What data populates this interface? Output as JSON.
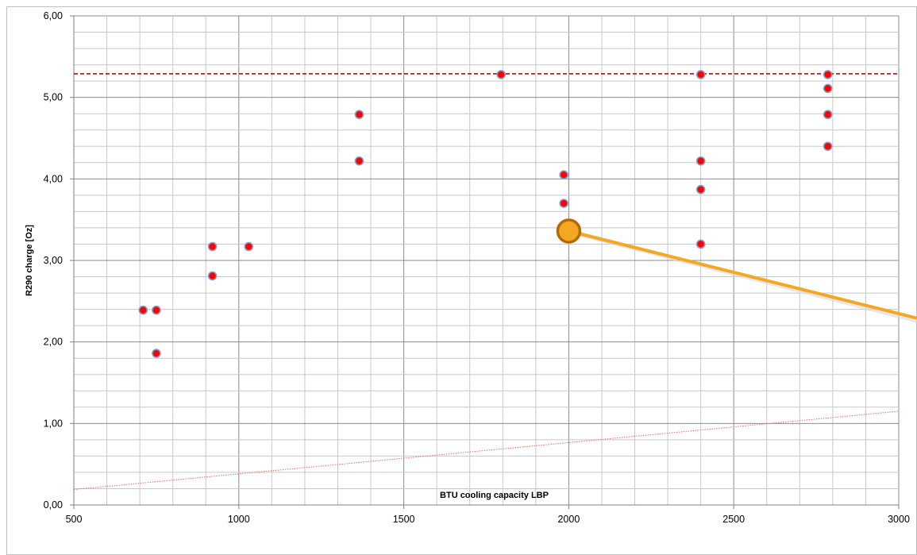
{
  "chart_data": {
    "type": "scatter",
    "title": "",
    "xlabel": "BTU cooling capacity LBP",
    "ylabel": "R290 charge [Oz]",
    "xlim": [
      500,
      3000
    ],
    "ylim": [
      0,
      6
    ],
    "x_ticks": [
      "500",
      "1000",
      "1500",
      "2000",
      "2500",
      "3000"
    ],
    "y_ticks": [
      "0,00",
      "1,00",
      "2,00",
      "3,00",
      "4,00",
      "5,00",
      "6,00"
    ],
    "grid": true,
    "legend": "none",
    "series": [
      {
        "points": [
          [
            710,
            2.39
          ],
          [
            750,
            2.39
          ],
          [
            750,
            1.86
          ],
          [
            920,
            3.17
          ],
          [
            920,
            2.81
          ],
          [
            1030,
            3.17
          ],
          [
            1365,
            4.79
          ],
          [
            1365,
            4.22
          ],
          [
            1795,
            5.28
          ],
          [
            1985,
            4.05
          ],
          [
            1985,
            3.7
          ],
          [
            2400,
            5.28
          ],
          [
            2400,
            4.22
          ],
          [
            2400,
            3.87
          ],
          [
            2400,
            3.2
          ],
          [
            2785,
            5.28
          ],
          [
            2785,
            5.11
          ],
          [
            2785,
            4.79
          ],
          [
            2785,
            4.4
          ]
        ]
      }
    ],
    "reference_line": {
      "y": 5.29,
      "style": "dashed"
    },
    "trend_line": {
      "points": [
        [
          500,
          0.19
        ],
        [
          3000,
          1.15
        ]
      ],
      "style": "dotted"
    },
    "highlight": {
      "point": [
        2000,
        3.36
      ]
    },
    "colors": {
      "marker_fill": "#ff0000",
      "marker_stroke": "#7f9fd0",
      "reference_line": "#cc0000",
      "trend_line": "#ff6666",
      "highlight": "#f5a623",
      "highlight_stroke": "#b36b00",
      "grid": "#c8c8c8",
      "grid_major": "#8c8c8c"
    }
  }
}
